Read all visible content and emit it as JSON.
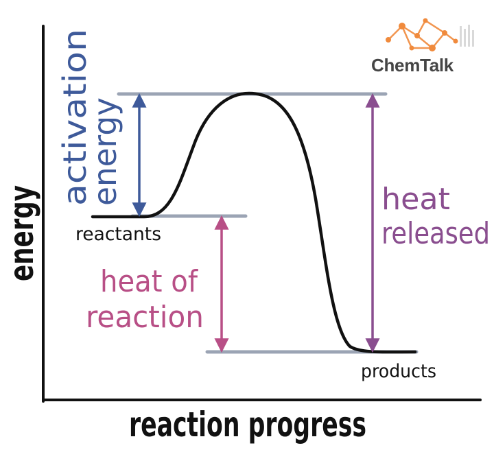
{
  "logo": {
    "text": "ChemTalk",
    "accent_color": "#f08a3c"
  },
  "axes": {
    "y_label": "energy",
    "x_label": "reaction progress"
  },
  "labels": {
    "activation": [
      "activation",
      "energy"
    ],
    "heat_released": [
      "heat",
      "released"
    ],
    "heat_of_reaction": [
      "heat of",
      "reaction"
    ],
    "reactants": "reactants",
    "products": "products"
  },
  "colors": {
    "activation": "#3e5a9a",
    "heat_released": "#8a4e8f",
    "heat_of_reaction": "#b84f86",
    "level_lines": "#9ba4b4",
    "curve": "#111111"
  }
}
